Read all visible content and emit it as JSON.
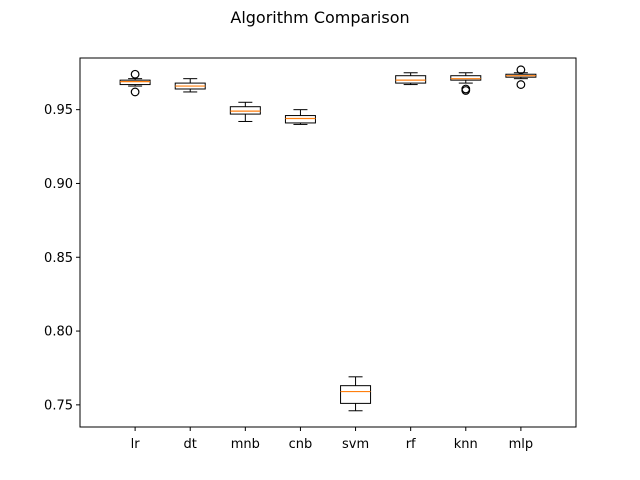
{
  "chart_data": {
    "type": "box",
    "title": "Algorithm Comparison",
    "xlabel": "",
    "ylabel": "",
    "ylim": [
      0.735,
      0.985
    ],
    "yticks": [
      0.75,
      0.8,
      0.85,
      0.9,
      0.95
    ],
    "ytick_labels": [
      "0.75",
      "0.80",
      "0.85",
      "0.90",
      "0.95"
    ],
    "grid": false,
    "categories": [
      "lr",
      "dt",
      "mnb",
      "cnb",
      "svm",
      "rf",
      "knn",
      "mlp"
    ],
    "boxes": [
      {
        "label": "lr",
        "whisker_low": 0.966,
        "q1": 0.967,
        "median": 0.969,
        "q3": 0.97,
        "whisker_high": 0.971,
        "outliers": [
          0.974,
          0.962
        ]
      },
      {
        "label": "dt",
        "whisker_low": 0.962,
        "q1": 0.964,
        "median": 0.966,
        "q3": 0.968,
        "whisker_high": 0.971,
        "outliers": []
      },
      {
        "label": "mnb",
        "whisker_low": 0.942,
        "q1": 0.947,
        "median": 0.949,
        "q3": 0.952,
        "whisker_high": 0.955,
        "outliers": []
      },
      {
        "label": "cnb",
        "whisker_low": 0.94,
        "q1": 0.941,
        "median": 0.944,
        "q3": 0.946,
        "whisker_high": 0.95,
        "outliers": []
      },
      {
        "label": "svm",
        "whisker_low": 0.746,
        "q1": 0.751,
        "median": 0.759,
        "q3": 0.763,
        "whisker_high": 0.769,
        "outliers": []
      },
      {
        "label": "rf",
        "whisker_low": 0.967,
        "q1": 0.968,
        "median": 0.97,
        "q3": 0.973,
        "whisker_high": 0.975,
        "outliers": []
      },
      {
        "label": "knn",
        "whisker_low": 0.968,
        "q1": 0.97,
        "median": 0.971,
        "q3": 0.973,
        "whisker_high": 0.975,
        "outliers": [
          0.964,
          0.963
        ]
      },
      {
        "label": "mlp",
        "whisker_low": 0.971,
        "q1": 0.972,
        "median": 0.973,
        "q3": 0.974,
        "whisker_high": 0.975,
        "outliers": [
          0.977,
          0.967
        ]
      }
    ],
    "colors": {
      "box": "#000000",
      "median": "#ff7f0e",
      "outlier_fill": "none"
    }
  }
}
